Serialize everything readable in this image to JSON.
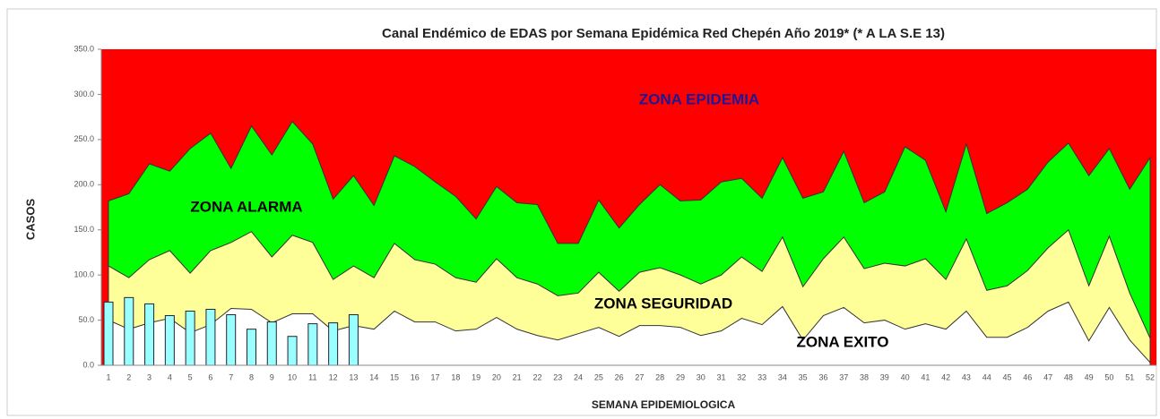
{
  "chart_data": {
    "type": "area",
    "title": "Canal Endémico de EDAS por Semana Epidémica Red Chepén  Año 2019* (* A LA S.E 13)",
    "x_label": "SEMANA EPIDEMIOLOGICA",
    "y_label": "CASOS",
    "categories": [
      "1",
      "2",
      "3",
      "4",
      "5",
      "6",
      "7",
      "8",
      "9",
      "10",
      "11",
      "12",
      "13",
      "14",
      "15",
      "16",
      "17",
      "18",
      "19",
      "20",
      "21",
      "22",
      "23",
      "24",
      "25",
      "26",
      "27",
      "28",
      "29",
      "30",
      "31",
      "32",
      "33",
      "34",
      "35",
      "36",
      "37",
      "38",
      "39",
      "40",
      "41",
      "42",
      "43",
      "44",
      "45",
      "46",
      "47",
      "48",
      "49",
      "50",
      "51",
      "52"
    ],
    "ylim": [
      0,
      350
    ],
    "yticks": [
      {
        "value": 0,
        "label": "0.0"
      },
      {
        "value": 50,
        "label": "50.0"
      },
      {
        "value": 100,
        "label": "100.0"
      },
      {
        "value": 150,
        "label": "150.0"
      },
      {
        "value": 200,
        "label": "200.0"
      },
      {
        "value": 250,
        "label": "250.0"
      },
      {
        "value": 300,
        "label": "300.0"
      },
      {
        "value": 350,
        "label": "350.0"
      }
    ],
    "epidemic_zone": {
      "name": "ZONA  EPIDEMIA",
      "color": "#ff0000"
    },
    "series": [
      {
        "name": "ZONA  ALARMA",
        "color": "#00ff00",
        "values": [
          182,
          190,
          223,
          215,
          240,
          257,
          218,
          265,
          233,
          270,
          245,
          184,
          210,
          177,
          232,
          220,
          203,
          187,
          162,
          198,
          180,
          178,
          135,
          135,
          183,
          152,
          178,
          200,
          182,
          183,
          203,
          207,
          185,
          230,
          185,
          192,
          237,
          180,
          192,
          242,
          227,
          170,
          245,
          168,
          180,
          195,
          225,
          246,
          210,
          240,
          195,
          230
        ]
      },
      {
        "name": "ZONA  SEGURIDAD",
        "color": "#ffff99",
        "values": [
          110,
          97,
          117,
          127,
          102,
          127,
          136,
          148,
          120,
          144,
          136,
          95,
          110,
          97,
          135,
          117,
          112,
          97,
          92,
          118,
          97,
          90,
          77,
          80,
          103,
          82,
          103,
          108,
          100,
          90,
          100,
          120,
          104,
          142,
          87,
          118,
          142,
          107,
          113,
          110,
          118,
          95,
          140,
          83,
          88,
          105,
          130,
          150,
          88,
          143,
          80,
          30
        ]
      },
      {
        "name": "ZONA EXITO",
        "color": "#ffffff",
        "values": [
          50,
          40,
          47,
          52,
          36,
          45,
          63,
          62,
          47,
          57,
          57,
          38,
          44,
          40,
          60,
          48,
          48,
          38,
          40,
          53,
          40,
          33,
          28,
          35,
          42,
          32,
          44,
          44,
          42,
          33,
          38,
          52,
          45,
          65,
          28,
          55,
          64,
          47,
          50,
          40,
          46,
          40,
          60,
          31,
          31,
          42,
          60,
          70,
          27,
          64,
          28,
          3
        ]
      }
    ],
    "bars": {
      "color": "#99ffff",
      "values": [
        70,
        75,
        68,
        55,
        60,
        62,
        56,
        40,
        48,
        32,
        46,
        47,
        56
      ]
    }
  }
}
